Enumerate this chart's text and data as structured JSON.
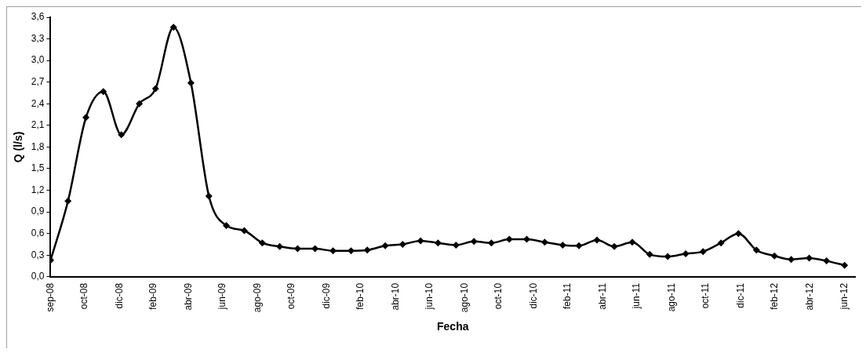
{
  "chart_data": {
    "type": "line",
    "xlabel": "Fecha",
    "ylabel": "Q (l/s)",
    "x": [
      "2008-09",
      "2008-10",
      "2008-11",
      "2008-12",
      "2009-01",
      "2009-02",
      "2009-03",
      "2009-04",
      "2009-05",
      "2009-06",
      "2009-07",
      "2009-08",
      "2009-09",
      "2009-10",
      "2009-11",
      "2009-12",
      "2010-01",
      "2010-02",
      "2010-03",
      "2010-04",
      "2010-05",
      "2010-06",
      "2010-07",
      "2010-08",
      "2010-09",
      "2010-10",
      "2010-11",
      "2010-12",
      "2011-01",
      "2011-02",
      "2011-03",
      "2011-04",
      "2011-05",
      "2011-06",
      "2011-07",
      "2011-08",
      "2011-09",
      "2011-10",
      "2011-11",
      "2011-12",
      "2012-01",
      "2012-02",
      "2012-03",
      "2012-04",
      "2012-05",
      "2012-06"
    ],
    "series": [
      {
        "color": "#000000",
        "values": [
          0.23,
          1.05,
          2.21,
          2.57,
          1.97,
          2.4,
          2.61,
          3.46,
          2.69,
          1.12,
          0.71,
          0.64,
          0.47,
          0.42,
          0.39,
          0.39,
          0.36,
          0.36,
          0.37,
          0.43,
          0.45,
          0.5,
          0.47,
          0.44,
          0.49,
          0.47,
          0.52,
          0.52,
          0.48,
          0.44,
          0.43,
          0.51,
          0.42,
          0.48,
          0.31,
          0.28,
          0.32,
          0.35,
          0.47,
          0.6,
          0.37,
          0.29,
          0.24,
          0.26,
          0.22,
          0.16
        ]
      }
    ],
    "xlim": [
      "2008-09-01",
      "2012-06-19"
    ],
    "xticks": [
      {
        "value": "2008-09-01",
        "label": "sep-08"
      },
      {
        "value": "2008-10-30",
        "label": "oct-08"
      },
      {
        "value": "2008-12-29",
        "label": "dic-08"
      },
      {
        "value": "2009-02-26",
        "label": "feb-09"
      },
      {
        "value": "2009-04-27",
        "label": "abr-09"
      },
      {
        "value": "2009-06-25",
        "label": "jun-09"
      },
      {
        "value": "2009-08-24",
        "label": "ago-09"
      },
      {
        "value": "2009-10-22",
        "label": "oct-09"
      },
      {
        "value": "2009-12-21",
        "label": "dic-09"
      },
      {
        "value": "2010-02-18",
        "label": "feb-10"
      },
      {
        "value": "2010-04-19",
        "label": "abr-10"
      },
      {
        "value": "2010-06-17",
        "label": "jun-10"
      },
      {
        "value": "2010-08-16",
        "label": "ago-10"
      },
      {
        "value": "2010-10-14",
        "label": "oct-10"
      },
      {
        "value": "2010-12-13",
        "label": "dic-10"
      },
      {
        "value": "2011-02-10",
        "label": "feb-11"
      },
      {
        "value": "2011-04-11",
        "label": "abr-11"
      },
      {
        "value": "2011-06-09",
        "label": "jun-11"
      },
      {
        "value": "2011-08-08",
        "label": "ago-11"
      },
      {
        "value": "2011-10-06",
        "label": "oct-11"
      },
      {
        "value": "2011-12-05",
        "label": "dic-11"
      },
      {
        "value": "2012-02-02",
        "label": "feb-12"
      },
      {
        "value": "2012-04-02",
        "label": "abr-12"
      },
      {
        "value": "2012-06-01",
        "label": "jun-12"
      }
    ],
    "ylim": [
      0,
      3.6
    ],
    "yticks": [
      {
        "value": 0,
        "label": "0,0"
      },
      {
        "value": 0.3,
        "label": "0,3"
      },
      {
        "value": 0.6,
        "label": "0,6"
      },
      {
        "value": 0.9,
        "label": "0,9"
      },
      {
        "value": 1.2,
        "label": "1,2"
      },
      {
        "value": 1.5,
        "label": "1,5"
      },
      {
        "value": 1.8,
        "label": "1,8"
      },
      {
        "value": 2.1,
        "label": "2,1"
      },
      {
        "value": 2.4,
        "label": "2,4"
      },
      {
        "value": 2.7,
        "label": "2,7"
      },
      {
        "value": 3.0,
        "label": "3,0"
      },
      {
        "value": 3.3,
        "label": "3,3"
      },
      {
        "value": 3.6,
        "label": "3,6"
      }
    ],
    "marker": "diamond",
    "line_style": "solid"
  }
}
